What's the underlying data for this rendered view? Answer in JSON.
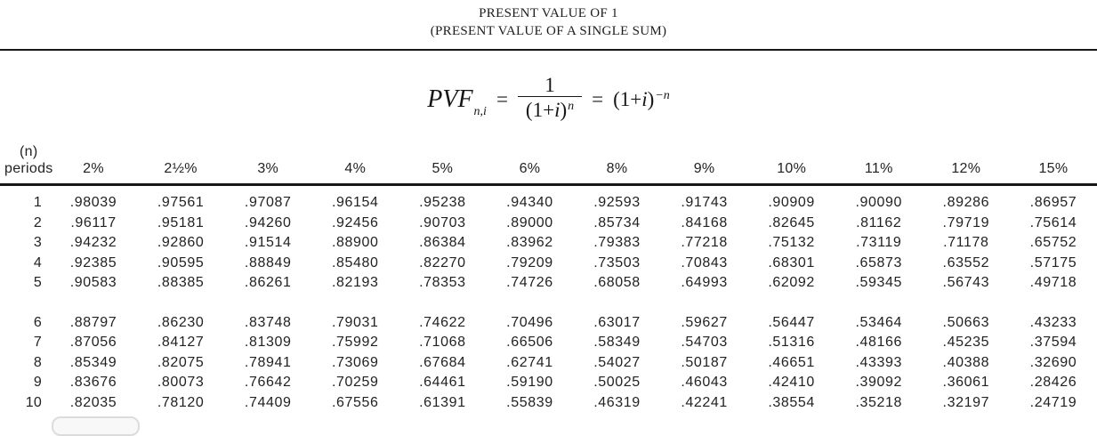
{
  "header": {
    "title": "PRESENT VALUE OF 1",
    "subtitle": "(PRESENT VALUE OF A SINGLE SUM)"
  },
  "formula": {
    "pvf": "PVF",
    "pvf_sub": "n,i",
    "eq1": "=",
    "num": "1",
    "den_pre": "(1+",
    "den_var": "i",
    "den_post": ")",
    "den_exp": "n",
    "eq2": "=",
    "rhs_pre": "(1+",
    "rhs_var": "i",
    "rhs_post": ")",
    "rhs_exp": "−n"
  },
  "table": {
    "corner_header_line1": "(n)",
    "corner_header_line2": "periods",
    "column_headers": [
      "2%",
      "2½%",
      "3%",
      "4%",
      "5%",
      "6%",
      "8%",
      "9%",
      "10%",
      "11%",
      "12%",
      "15%"
    ],
    "group_break_after": 5,
    "rows": [
      {
        "n": "1",
        "values": [
          ".98039",
          ".97561",
          ".97087",
          ".96154",
          ".95238",
          ".94340",
          ".92593",
          ".91743",
          ".90909",
          ".90090",
          ".89286",
          ".86957"
        ]
      },
      {
        "n": "2",
        "values": [
          ".96117",
          ".95181",
          ".94260",
          ".92456",
          ".90703",
          ".89000",
          ".85734",
          ".84168",
          ".82645",
          ".81162",
          ".79719",
          ".75614"
        ]
      },
      {
        "n": "3",
        "values": [
          ".94232",
          ".92860",
          ".91514",
          ".88900",
          ".86384",
          ".83962",
          ".79383",
          ".77218",
          ".75132",
          ".73119",
          ".71178",
          ".65752"
        ]
      },
      {
        "n": "4",
        "values": [
          ".92385",
          ".90595",
          ".88849",
          ".85480",
          ".82270",
          ".79209",
          ".73503",
          ".70843",
          ".68301",
          ".65873",
          ".63552",
          ".57175"
        ]
      },
      {
        "n": "5",
        "values": [
          ".90583",
          ".88385",
          ".86261",
          ".82193",
          ".78353",
          ".74726",
          ".68058",
          ".64993",
          ".62092",
          ".59345",
          ".56743",
          ".49718"
        ]
      },
      {
        "n": "6",
        "values": [
          ".88797",
          ".86230",
          ".83748",
          ".79031",
          ".74622",
          ".70496",
          ".63017",
          ".59627",
          ".56447",
          ".53464",
          ".50663",
          ".43233"
        ]
      },
      {
        "n": "7",
        "values": [
          ".87056",
          ".84127",
          ".81309",
          ".75992",
          ".71068",
          ".66506",
          ".58349",
          ".54703",
          ".51316",
          ".48166",
          ".45235",
          ".37594"
        ]
      },
      {
        "n": "8",
        "values": [
          ".85349",
          ".82075",
          ".78941",
          ".73069",
          ".67684",
          ".62741",
          ".54027",
          ".50187",
          ".46651",
          ".43393",
          ".40388",
          ".32690"
        ]
      },
      {
        "n": "9",
        "values": [
          ".83676",
          ".80073",
          ".76642",
          ".70259",
          ".64461",
          ".59190",
          ".50025",
          ".46043",
          ".42410",
          ".39092",
          ".36061",
          ".28426"
        ]
      },
      {
        "n": "10",
        "values": [
          ".82035",
          ".78120",
          ".74409",
          ".67556",
          ".61391",
          ".55839",
          ".46319",
          ".42241",
          ".38554",
          ".35218",
          ".32197",
          ".24719"
        ]
      }
    ]
  },
  "colors": {
    "text": "#1a1a1a",
    "rule": "#161616",
    "pill_border": "#dcdcdc",
    "pill_fill": "#f8f8f8"
  }
}
